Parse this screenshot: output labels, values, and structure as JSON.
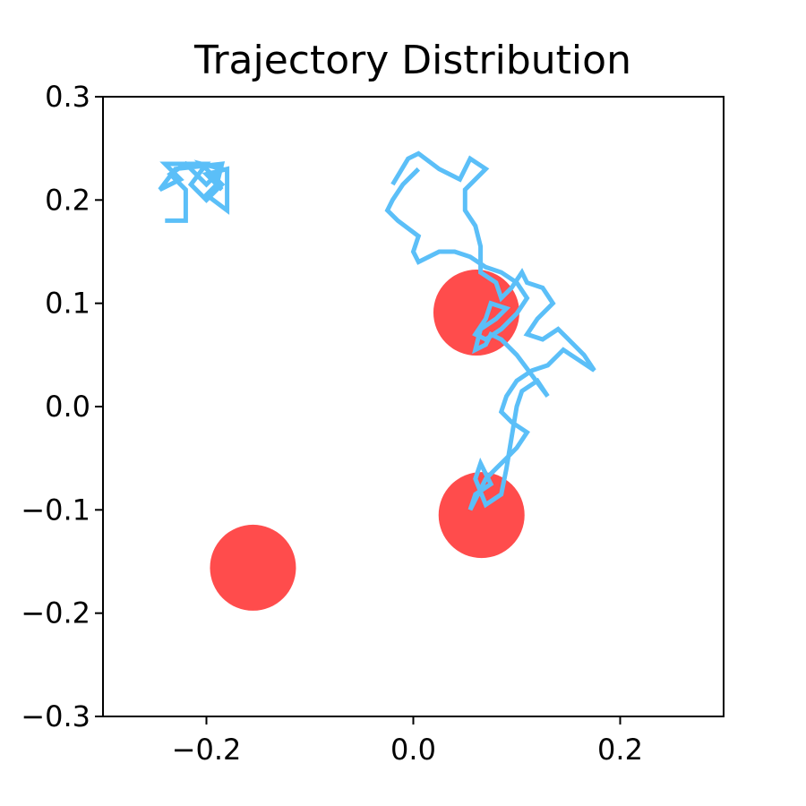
{
  "chart_data": {
    "type": "scatter",
    "title": "Trajectory Distribution",
    "xlabel": "",
    "ylabel": "",
    "xlim": [
      -0.3,
      0.3
    ],
    "ylim": [
      -0.3,
      0.3
    ],
    "xticks": [
      -0.2,
      0.0,
      0.2
    ],
    "xtick_labels": [
      "−0.2",
      "0.0",
      "0.2"
    ],
    "yticks": [
      0.3,
      0.2,
      0.1,
      0.0,
      -0.1,
      -0.2,
      -0.3
    ],
    "ytick_labels": [
      "0.3",
      "0.2",
      "0.1",
      "0.0",
      "−0.1",
      "−0.2",
      "−0.3"
    ],
    "grid": false,
    "legend": "none",
    "colors": {
      "trajectory": "#5bbff8",
      "target": "#ff4c4c"
    },
    "targets": [
      {
        "x": 0.061,
        "y": 0.091
      },
      {
        "x": 0.066,
        "y": -0.105
      },
      {
        "x": -0.155,
        "y": -0.156
      }
    ],
    "trajectories": [
      {
        "points": [
          [
            -0.24,
            0.18
          ],
          [
            -0.22,
            0.18
          ],
          [
            -0.22,
            0.21
          ],
          [
            -0.235,
            0.225
          ],
          [
            -0.22,
            0.235
          ],
          [
            -0.2,
            0.215
          ],
          [
            -0.185,
            0.23
          ],
          [
            -0.205,
            0.235
          ],
          [
            -0.185,
            0.215
          ],
          [
            -0.2,
            0.2
          ],
          [
            -0.215,
            0.215
          ],
          [
            -0.2,
            0.235
          ],
          [
            -0.24,
            0.235
          ],
          [
            -0.225,
            0.22
          ],
          [
            -0.245,
            0.21
          ],
          [
            -0.23,
            0.23
          ],
          [
            -0.185,
            0.235
          ],
          [
            -0.19,
            0.215
          ],
          [
            -0.2,
            0.205
          ],
          [
            -0.18,
            0.19
          ],
          [
            -0.18,
            0.23
          ],
          [
            -0.2,
            0.225
          ],
          [
            -0.185,
            0.21
          ]
        ]
      },
      {
        "points": [
          [
            -0.02,
            0.215
          ],
          [
            -0.005,
            0.24
          ],
          [
            0.005,
            0.245
          ],
          [
            0.025,
            0.23
          ],
          [
            0.045,
            0.22
          ],
          [
            0.055,
            0.24
          ],
          [
            0.07,
            0.23
          ],
          [
            0.05,
            0.21
          ],
          [
            0.05,
            0.19
          ],
          [
            0.06,
            0.175
          ],
          [
            0.065,
            0.155
          ],
          [
            0.065,
            0.13
          ],
          [
            0.08,
            0.12
          ],
          [
            0.085,
            0.105
          ],
          [
            0.095,
            0.115
          ],
          [
            0.105,
            0.13
          ],
          [
            0.11,
            0.12
          ],
          [
            0.125,
            0.115
          ],
          [
            0.135,
            0.1
          ],
          [
            0.12,
            0.085
          ],
          [
            0.11,
            0.07
          ],
          [
            0.125,
            0.065
          ],
          [
            0.14,
            0.075
          ],
          [
            0.15,
            0.065
          ],
          [
            0.165,
            0.05
          ],
          [
            0.175,
            0.035
          ],
          [
            0.16,
            0.045
          ],
          [
            0.145,
            0.055
          ],
          [
            0.13,
            0.04
          ],
          [
            0.115,
            0.035
          ],
          [
            0.1,
            0.025
          ],
          [
            0.09,
            0.01
          ],
          [
            0.085,
            -0.005
          ],
          [
            0.095,
            -0.015
          ],
          [
            0.11,
            -0.025
          ],
          [
            0.1,
            -0.04
          ],
          [
            0.09,
            -0.05
          ],
          [
            0.08,
            -0.06
          ],
          [
            0.07,
            -0.07
          ],
          [
            0.06,
            -0.09
          ],
          [
            0.055,
            -0.1
          ],
          [
            0.06,
            -0.085
          ],
          [
            0.075,
            -0.075
          ],
          [
            0.065,
            -0.055
          ],
          [
            0.06,
            -0.07
          ],
          [
            0.07,
            -0.095
          ],
          [
            0.085,
            -0.085
          ],
          [
            0.09,
            -0.06
          ],
          [
            0.095,
            -0.03
          ],
          [
            0.1,
            0.0
          ],
          [
            0.105,
            0.015
          ],
          [
            0.12,
            0.025
          ],
          [
            0.13,
            0.01
          ],
          [
            0.115,
            0.03
          ],
          [
            0.1,
            0.05
          ],
          [
            0.085,
            0.065
          ],
          [
            0.075,
            0.07
          ],
          [
            0.07,
            0.06
          ],
          [
            0.06,
            0.055
          ],
          [
            0.065,
            0.075
          ],
          [
            0.08,
            0.085
          ],
          [
            0.09,
            0.095
          ],
          [
            0.075,
            0.1
          ],
          [
            0.07,
            0.085
          ],
          [
            0.06,
            0.07
          ],
          [
            0.07,
            0.065
          ],
          [
            0.085,
            0.075
          ],
          [
            0.1,
            0.09
          ],
          [
            0.11,
            0.105
          ],
          [
            0.1,
            0.12
          ],
          [
            0.085,
            0.13
          ],
          [
            0.07,
            0.135
          ],
          [
            0.055,
            0.145
          ],
          [
            0.04,
            0.15
          ],
          [
            0.025,
            0.15
          ],
          [
            0.005,
            0.14
          ],
          [
            0.0,
            0.15
          ],
          [
            0.005,
            0.165
          ],
          [
            -0.015,
            0.18
          ],
          [
            -0.025,
            0.19
          ],
          [
            -0.02,
            0.2
          ],
          [
            -0.01,
            0.215
          ],
          [
            0.005,
            0.23
          ]
        ]
      }
    ]
  }
}
